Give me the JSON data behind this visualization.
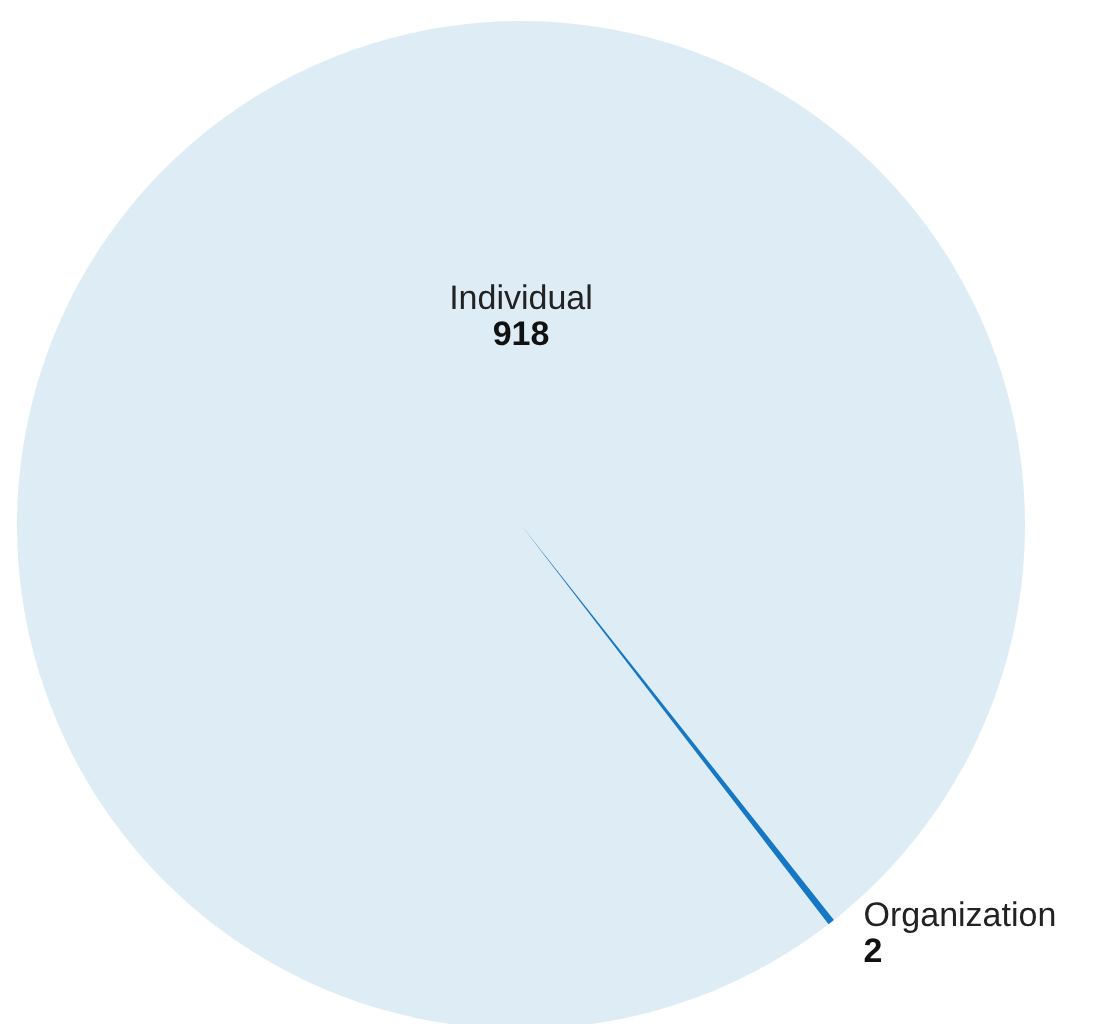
{
  "chart_data": {
    "type": "pie",
    "categories": [
      "Individual",
      "Organization"
    ],
    "values": [
      918,
      2
    ],
    "colors": [
      "#deedf5",
      "#1677c4"
    ],
    "data_labels": true
  }
}
